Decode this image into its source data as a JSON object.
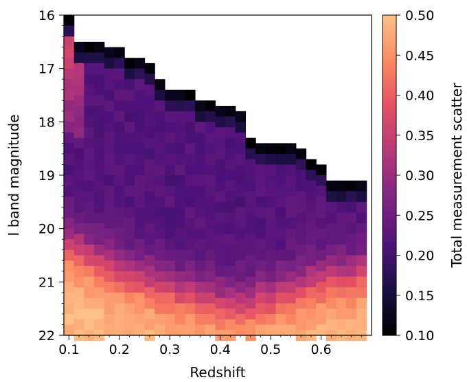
{
  "chart_data": {
    "type": "heatmap",
    "title": "",
    "xlabel": "Redshift",
    "ylabel": "I band magnitude",
    "colorbar_label": "Total measurement scatter",
    "xlim": [
      0.09,
      0.7
    ],
    "ylim": [
      22,
      16
    ],
    "x_ticks": [
      0.1,
      0.2,
      0.3,
      0.4,
      0.5,
      0.6
    ],
    "x_tick_labels": [
      "0.1",
      "0.2",
      "0.3",
      "0.4",
      "0.5",
      "0.6"
    ],
    "y_ticks": [
      16,
      17,
      18,
      19,
      20,
      21,
      22
    ],
    "y_tick_labels": [
      "16",
      "17",
      "18",
      "19",
      "20",
      "21",
      "22"
    ],
    "color_range": [
      0.1,
      0.5
    ],
    "colorbar_ticks": [
      0.1,
      0.15,
      0.2,
      0.25,
      0.3,
      0.35,
      0.4,
      0.45,
      0.5
    ],
    "colorbar_tick_labels": [
      "0.10",
      "0.15",
      "0.20",
      "0.25",
      "0.30",
      "0.35",
      "0.40",
      "0.45",
      "0.50"
    ],
    "colormap": "magma",
    "grid": false,
    "bin_width_x": 0.02,
    "bin_width_y": 0.2,
    "x_bins": [
      0.1,
      0.12,
      0.14,
      0.16,
      0.18,
      0.2,
      0.22,
      0.24,
      0.26,
      0.28,
      0.3,
      0.32,
      0.34,
      0.36,
      0.38,
      0.4,
      0.42,
      0.44,
      0.46,
      0.48,
      0.5,
      0.52,
      0.54,
      0.56,
      0.58,
      0.6,
      0.62,
      0.64,
      0.66,
      0.68
    ],
    "upper_limit_by_column": [
      16.0,
      16.5,
      16.5,
      16.5,
      16.6,
      16.6,
      16.8,
      16.8,
      16.9,
      17.2,
      17.4,
      17.4,
      17.4,
      17.6,
      17.6,
      17.7,
      17.7,
      17.8,
      18.3,
      18.4,
      18.4,
      18.4,
      18.4,
      18.5,
      18.7,
      18.8,
      19.1,
      19.1,
      19.1,
      19.1
    ],
    "edge_value_near_limit": 0.11,
    "bright_columns_value": 0.36,
    "interior_value": 0.22,
    "faint_end_value": 0.49,
    "faint_transition_magnitude_by_column": [
      20.3,
      20.4,
      20.5,
      20.6,
      20.7,
      20.8,
      20.9,
      20.9,
      21.0,
      21.1,
      21.1,
      21.2,
      21.2,
      21.3,
      21.3,
      21.4,
      21.4,
      21.4,
      21.4,
      21.3,
      21.3,
      21.2,
      21.2,
      21.1,
      21.0,
      21.0,
      20.9,
      20.9,
      20.9,
      20.8
    ]
  }
}
